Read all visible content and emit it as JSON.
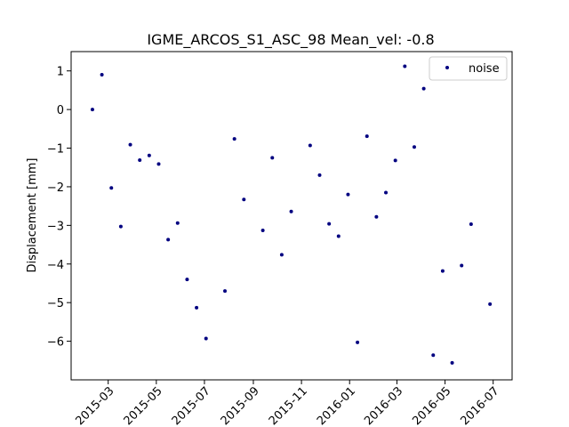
{
  "chart_data": {
    "type": "scatter",
    "title": "IGME_ARCOS_S1_ASC_98     Mean_vel: -0.8",
    "xlabel": "",
    "ylabel": "Displacement [mm]",
    "x_axis_type": "date",
    "xlim": [
      "2015-01-13",
      "2016-07-25"
    ],
    "ylim": [
      -7.0,
      1.5
    ],
    "x_ticks": [
      {
        "value": "2015-03-01",
        "label": "2015-03"
      },
      {
        "value": "2015-05-01",
        "label": "2015-05"
      },
      {
        "value": "2015-07-01",
        "label": "2015-07"
      },
      {
        "value": "2015-09-01",
        "label": "2015-09"
      },
      {
        "value": "2015-11-01",
        "label": "2015-11"
      },
      {
        "value": "2016-01-01",
        "label": "2016-01"
      },
      {
        "value": "2016-03-01",
        "label": "2016-03"
      },
      {
        "value": "2016-05-01",
        "label": "2016-05"
      },
      {
        "value": "2016-07-01",
        "label": "2016-07"
      }
    ],
    "y_ticks": [
      {
        "value": 1,
        "label": "1"
      },
      {
        "value": 0,
        "label": "0"
      },
      {
        "value": -1,
        "label": "−1"
      },
      {
        "value": -2,
        "label": "−2"
      },
      {
        "value": -3,
        "label": "−3"
      },
      {
        "value": -4,
        "label": "−4"
      },
      {
        "value": -5,
        "label": "−5"
      },
      {
        "value": -6,
        "label": "−6"
      }
    ],
    "grid": false,
    "legend_position": "top-right",
    "series": [
      {
        "name": "noise",
        "color": "#000080",
        "marker": "dot",
        "points": [
          {
            "x": "2015-02-09",
            "y": 0.0
          },
          {
            "x": "2015-02-21",
            "y": 0.9
          },
          {
            "x": "2015-03-05",
            "y": -2.03
          },
          {
            "x": "2015-03-17",
            "y": -3.03
          },
          {
            "x": "2015-03-29",
            "y": -0.91
          },
          {
            "x": "2015-04-10",
            "y": -1.31
          },
          {
            "x": "2015-04-22",
            "y": -1.19
          },
          {
            "x": "2015-05-04",
            "y": -1.41
          },
          {
            "x": "2015-05-16",
            "y": -3.37
          },
          {
            "x": "2015-05-28",
            "y": -2.94
          },
          {
            "x": "2015-06-09",
            "y": -4.4
          },
          {
            "x": "2015-06-21",
            "y": -5.13
          },
          {
            "x": "2015-07-03",
            "y": -5.93
          },
          {
            "x": "2015-07-27",
            "y": -4.7
          },
          {
            "x": "2015-08-08",
            "y": -0.76
          },
          {
            "x": "2015-08-20",
            "y": -2.33
          },
          {
            "x": "2015-09-13",
            "y": -3.13
          },
          {
            "x": "2015-09-25",
            "y": -1.25
          },
          {
            "x": "2015-10-07",
            "y": -3.76
          },
          {
            "x": "2015-10-19",
            "y": -2.64
          },
          {
            "x": "2015-11-12",
            "y": -0.93
          },
          {
            "x": "2015-11-24",
            "y": -1.7
          },
          {
            "x": "2015-12-06",
            "y": -2.96
          },
          {
            "x": "2015-12-18",
            "y": -3.28
          },
          {
            "x": "2015-12-30",
            "y": -2.2
          },
          {
            "x": "2016-01-11",
            "y": -6.03
          },
          {
            "x": "2016-01-23",
            "y": -0.69
          },
          {
            "x": "2016-02-04",
            "y": -2.78
          },
          {
            "x": "2016-02-16",
            "y": -2.15
          },
          {
            "x": "2016-02-28",
            "y": -1.32
          },
          {
            "x": "2016-03-11",
            "y": 1.12
          },
          {
            "x": "2016-03-23",
            "y": -0.97
          },
          {
            "x": "2016-04-04",
            "y": 0.54
          },
          {
            "x": "2016-04-16",
            "y": -6.36
          },
          {
            "x": "2016-04-28",
            "y": -4.18
          },
          {
            "x": "2016-05-10",
            "y": -6.56
          },
          {
            "x": "2016-05-22",
            "y": -4.04
          },
          {
            "x": "2016-06-03",
            "y": -2.97
          },
          {
            "x": "2016-06-27",
            "y": -5.04
          }
        ]
      }
    ]
  }
}
